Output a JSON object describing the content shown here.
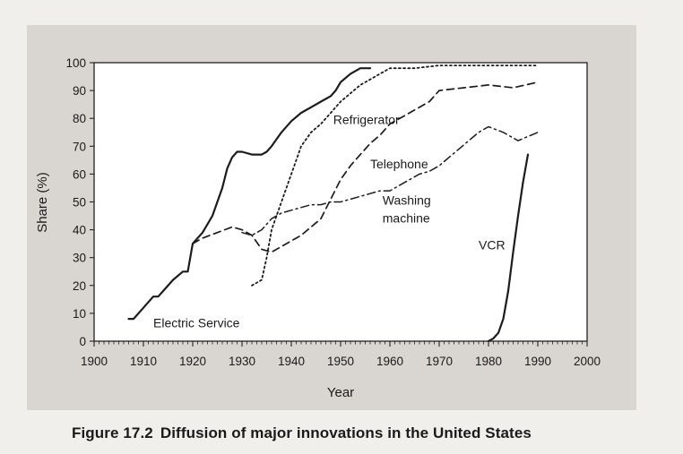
{
  "caption": {
    "figure_number": "Figure 17.2",
    "text": "Diffusion of major innovations in the United States"
  },
  "chart_data": {
    "type": "line",
    "xlabel": "Year",
    "ylabel": "Share (%)",
    "xlim": [
      1900,
      2000
    ],
    "ylim": [
      0,
      100
    ],
    "xticks": [
      1900,
      1910,
      1920,
      1930,
      1940,
      1950,
      1960,
      1970,
      1980,
      1990,
      2000
    ],
    "yticks": [
      0,
      10,
      20,
      30,
      40,
      50,
      60,
      70,
      80,
      90,
      100
    ],
    "grid": false,
    "legend": "direct labels",
    "series": [
      {
        "name": "Electric Service",
        "style": "solid",
        "x": [
          1907,
          1908,
          1910,
          1912,
          1913,
          1914,
          1916,
          1918,
          1919,
          1920,
          1922,
          1924,
          1926,
          1927,
          1928,
          1929,
          1930,
          1932,
          1934,
          1935,
          1936,
          1938,
          1940,
          1942,
          1944,
          1946,
          1948,
          1949,
          1950,
          1952,
          1954,
          1956
        ],
        "y": [
          8,
          8,
          12,
          16,
          16,
          18,
          22,
          25,
          25,
          35,
          39,
          45,
          55,
          62,
          66,
          68,
          68,
          67,
          67,
          68,
          70,
          75,
          79,
          82,
          84,
          86,
          88,
          90,
          93,
          96,
          98,
          98
        ]
      },
      {
        "name": "Refrigerator",
        "style": "dotted",
        "x": [
          1932,
          1934,
          1935,
          1936,
          1938,
          1940,
          1942,
          1944,
          1946,
          1948,
          1950,
          1952,
          1954,
          1956,
          1958,
          1960,
          1965,
          1970,
          1975,
          1980,
          1985,
          1990
        ],
        "y": [
          20,
          22,
          30,
          40,
          50,
          60,
          70,
          75,
          78,
          82,
          86,
          89,
          92,
          94,
          96,
          98,
          98,
          99,
          99,
          99,
          99,
          99
        ]
      },
      {
        "name": "Telephone",
        "style": "dashed",
        "x": [
          1920,
          1922,
          1925,
          1928,
          1930,
          1932,
          1934,
          1936,
          1938,
          1940,
          1942,
          1944,
          1946,
          1948,
          1950,
          1952,
          1954,
          1956,
          1958,
          1960,
          1962,
          1965,
          1968,
          1970,
          1975,
          1980,
          1985,
          1990
        ],
        "y": [
          35,
          37,
          39,
          41,
          40,
          38,
          33,
          32,
          34,
          36,
          38,
          41,
          44,
          51,
          58,
          63,
          67,
          71,
          74,
          78,
          80,
          83,
          86,
          90,
          91,
          92,
          91,
          93
        ]
      },
      {
        "name": "Washing machine",
        "style": "dashdot",
        "x": [
          1930,
          1932,
          1934,
          1936,
          1938,
          1940,
          1942,
          1944,
          1946,
          1948,
          1950,
          1952,
          1954,
          1956,
          1958,
          1960,
          1962,
          1964,
          1966,
          1968,
          1970,
          1972,
          1974,
          1976,
          1978,
          1980,
          1983,
          1986,
          1990
        ],
        "y": [
          39,
          38,
          40,
          44,
          46,
          47,
          48,
          49,
          49,
          50,
          50,
          51,
          52,
          53,
          54,
          54,
          56,
          58,
          60,
          61,
          63,
          66,
          69,
          72,
          75,
          77,
          75,
          72,
          75
        ]
      },
      {
        "name": "VCR",
        "style": "solid",
        "x": [
          1980,
          1981,
          1982,
          1983,
          1984,
          1985,
          1986,
          1987,
          1988
        ],
        "y": [
          0,
          1,
          3,
          8,
          18,
          32,
          45,
          57,
          67
        ]
      }
    ],
    "series_label_positions": {
      "Electric Service": [
        1912,
        5
      ],
      "Refrigerator": [
        1948.5,
        78
      ],
      "Telephone": [
        1956,
        62
      ],
      "Washing machine": [
        1958.5,
        49
      ],
      "VCR": [
        1978,
        33
      ]
    }
  }
}
